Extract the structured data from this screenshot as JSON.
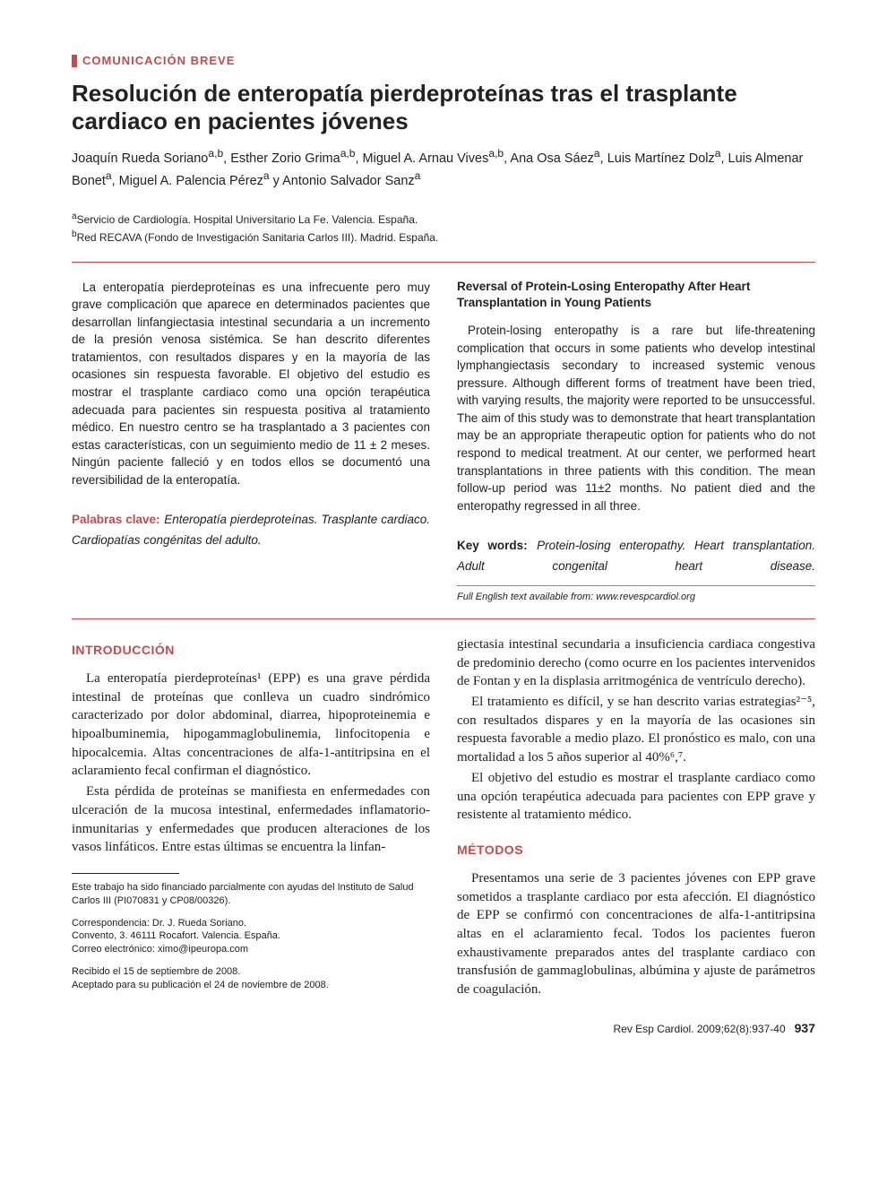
{
  "section_tag": "COMUNICACIÓN BREVE",
  "title": "Resolución de enteropatía pierdeproteínas tras el trasplante cardiaco en pacientes jóvenes",
  "authors_html": "Joaquín Rueda Soriano<sup>a,b</sup>, Esther Zorio Grima<sup>a,b</sup>, Miguel A. Arnau Vives<sup>a,b</sup>, Ana Osa Sáez<sup>a</sup>, Luis Martínez Dolz<sup>a</sup>, Luis Almenar Bonet<sup>a</sup>, Miguel A. Palencia Pérez<sup>a</sup> y Antonio Salvador Sanz<sup>a</sup>",
  "affiliations": {
    "a": "Servicio de Cardiología. Hospital Universitario La Fe. Valencia. España.",
    "b": "Red RECAVA (Fondo de Investigación Sanitaria Carlos III). Madrid. España."
  },
  "abstract_es": "La enteropatía pierdeproteínas es una infrecuente pero muy grave complicación que aparece en determinados pacientes que desarrollan linfangiectasia intestinal secundaria a un incremento de la presión venosa sistémica. Se han descrito diferentes tratamientos, con resultados dispares y en la mayoría de las ocasiones sin respuesta favorable. El objetivo del estudio es mostrar el trasplante cardiaco como una opción terapéutica adecuada para pacientes sin respuesta positiva al tratamiento médico. En nuestro centro se ha trasplantado a 3 pacientes con estas características, con un seguimiento medio de 11 ± 2 meses. Ningún paciente falleció y en todos ellos se documentó una reversibilidad de la enteropatía.",
  "keywords_es_label": "Palabras clave:",
  "keywords_es": "Enteropatía pierdeproteínas. Trasplante cardiaco. Cardiopatías congénitas del adulto.",
  "abstract_en_title": "Reversal of Protein-Losing Enteropathy After Heart Transplantation in Young Patients",
  "abstract_en": "Protein-losing enteropathy is a rare but life-threatening complication that occurs in some patients who develop intestinal lymphangiectasis secondary to increased systemic venous pressure. Although different forms of treatment have been tried, with varying results, the majority were reported to be unsuccessful. The aim of this study was to demonstrate that heart transplantation may be an appropriate therapeutic option for patients who do not respond to medical treatment. At our center, we performed heart transplantations in three patients with this condition. The mean follow-up period was 11±2 months. No patient died and the enteropathy regressed in all three.",
  "keywords_en_label": "Key words:",
  "keywords_en": "Protein-losing enteropathy. Heart transplantation. Adult congenital heart disease.",
  "en_note": "Full English text available from: www.revespcardiol.org",
  "intro_heading": "INTRODUCCIÓN",
  "intro_p1": "La enteropatía pierdeproteínas¹ (EPP) es una grave pérdida intestinal de proteínas que conlleva un cuadro sindrómico caracterizado por dolor abdominal, diarrea, hipoproteinemia e hipoalbuminemia, hipogammaglobulinemia, linfocitopenia e hipocalcemia. Altas concentraciones de alfa-1-antitripsina en el aclaramiento fecal confirman el diagnóstico.",
  "intro_p2": "Esta pérdida de proteínas se manifiesta en enfermedades con ulceración de la mucosa intestinal, enfermedades inflamatorio-inmunitarias y enfermedades que producen alteraciones de los vasos linfáticos. Entre estas últimas se encuentra la linfan-",
  "intro_p2_cont": "giectasia intestinal secundaria a insuficiencia cardiaca congestiva de predominio derecho (como ocurre en los pacientes intervenidos de Fontan y en la displasia arritmogénica de ventrículo derecho).",
  "intro_p3": "El tratamiento es difícil, y se han descrito varias estrategias²⁻⁵, con resultados dispares y en la mayoría de las ocasiones sin respuesta favorable a medio plazo. El pronóstico es malo, con una mortalidad a los 5 años superior al 40%⁶,⁷.",
  "intro_p4": "El objetivo del estudio es mostrar el trasplante cardiaco como una opción terapéutica adecuada para pacientes con EPP grave y resistente al tratamiento médico.",
  "methods_heading": "MÉTODOS",
  "methods_p1": "Presentamos una serie de 3 pacientes jóvenes con EPP grave sometidos a trasplante cardiaco por esta afección. El diagnóstico de EPP se confirmó con concentraciones de alfa-1-antitripsina altas en el aclaramiento fecal. Todos los pacientes fueron exhaustivamente preparados antes del trasplante cardiaco con transfusión de gammaglobulinas, albúmina y ajuste de parámetros de coagulación.",
  "footnote_funding": "Este trabajo ha sido financiado parcialmente con ayudas del Instituto de Salud Carlos III (PI070831 y CP08/00326).",
  "footnote_corr": "Correspondencia: Dr. J. Rueda Soriano.\nConvento, 3. 46111 Rocafort. Valencia. España.\nCorreo electrónico: ximo@ipeuropa.com",
  "footnote_dates": "Recibido el 15 de septiembre de 2008.\nAceptado para su publicación el 24 de noviembre de 2008.",
  "journal_ref": "Rev Esp Cardiol. 2009;62(8):937-40",
  "page_num": "937",
  "colors": {
    "accent": "#c94a4a",
    "text": "#222222",
    "bg": "#ffffff"
  }
}
